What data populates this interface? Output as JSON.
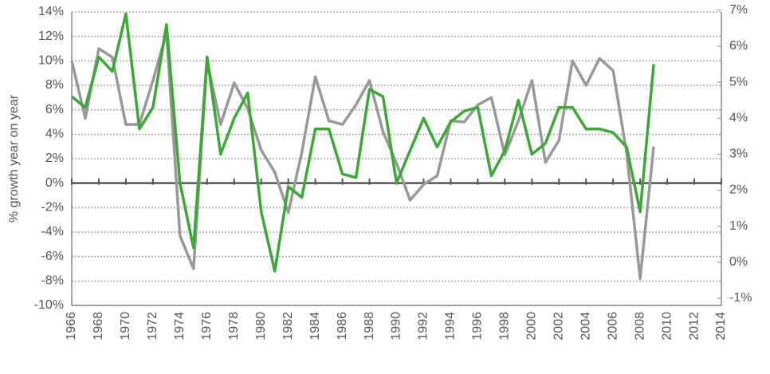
{
  "chart_data": {
    "type": "line",
    "y_label": "% growth year on year",
    "x": [
      1966,
      1967,
      1968,
      1969,
      1970,
      1971,
      1972,
      1973,
      1974,
      1975,
      1976,
      1977,
      1978,
      1979,
      1980,
      1981,
      1982,
      1983,
      1984,
      1985,
      1986,
      1987,
      1988,
      1989,
      1990,
      1991,
      1992,
      1993,
      1994,
      1995,
      1996,
      1997,
      1998,
      1999,
      2000,
      2001,
      2002,
      2003,
      2004,
      2005,
      2006,
      2007,
      2008,
      2009
    ],
    "series": [
      {
        "color": "#999999",
        "values": [
          10,
          5.3,
          11,
          10.3,
          4.8,
          4.8,
          8.4,
          12.3,
          -4.3,
          -7,
          10,
          4.8,
          8.2,
          6.1,
          2.7,
          0.9,
          -2.4,
          2.5,
          8.7,
          5.1,
          4.8,
          6.4,
          8.4,
          4.2,
          1.6,
          -1.4,
          -0.1,
          0.6,
          5.1,
          5,
          6.4,
          7,
          2.3,
          5.1,
          8.4,
          1.7,
          3.5,
          10,
          8,
          10.2,
          9.2,
          2.5,
          -7.8,
          3
        ]
      },
      {
        "color": "#3aaa35",
        "axis": "y2",
        "values": [
          4.6,
          4.3,
          5.7,
          5.3,
          6.9,
          3.7,
          4.3,
          6.6,
          2.2,
          0.4,
          5.7,
          3,
          4,
          4.7,
          1.4,
          -0.25,
          2.1,
          1.8,
          3.7,
          3.7,
          2.45,
          2.35,
          4.8,
          4.6,
          2.2,
          3.1,
          4,
          3.2,
          3.9,
          4.2,
          4.3,
          2.4,
          3.1,
          4.5,
          3,
          3.3,
          4.3,
          4.3,
          3.7,
          3.7,
          3.6,
          3.2,
          1.4,
          5.5
        ]
      }
    ],
    "xlim": [
      1966,
      2014
    ],
    "xticks": [
      1966,
      1968,
      1970,
      1972,
      1974,
      1976,
      1978,
      1980,
      1982,
      1984,
      1986,
      1988,
      1990,
      1992,
      1994,
      1996,
      1998,
      2000,
      2002,
      2004,
      2006,
      2008,
      2010,
      2012,
      2014
    ],
    "ylim": [
      -10,
      14
    ],
    "yticks": [
      {
        "value": -10,
        "label": "-10%"
      },
      {
        "value": -8,
        "label": "-8%"
      },
      {
        "value": -6,
        "label": "-6%"
      },
      {
        "value": -4,
        "label": "-4%"
      },
      {
        "value": -2,
        "label": "-2%"
      },
      {
        "value": 0,
        "label": "0%"
      },
      {
        "value": 2,
        "label": "2%"
      },
      {
        "value": 4,
        "label": "4%"
      },
      {
        "value": 6,
        "label": "6%"
      },
      {
        "value": 8,
        "label": "8%"
      },
      {
        "value": 10,
        "label": "10%"
      },
      {
        "value": 12,
        "label": "12%"
      },
      {
        "value": 14,
        "label": "14%"
      }
    ],
    "y2lim": [
      -1.2,
      6.95
    ],
    "y2ticks": [
      {
        "value": -1,
        "label": "-1%"
      },
      {
        "value": 0,
        "label": "0%"
      },
      {
        "value": 1,
        "label": "1%"
      },
      {
        "value": 2,
        "label": "2%"
      },
      {
        "value": 3,
        "label": "3%"
      },
      {
        "value": 4,
        "label": "4%"
      },
      {
        "value": 5,
        "label": "5%"
      },
      {
        "value": 6,
        "label": "6%"
      },
      {
        "value": 7,
        "label": "7%"
      }
    ],
    "grid": true
  }
}
